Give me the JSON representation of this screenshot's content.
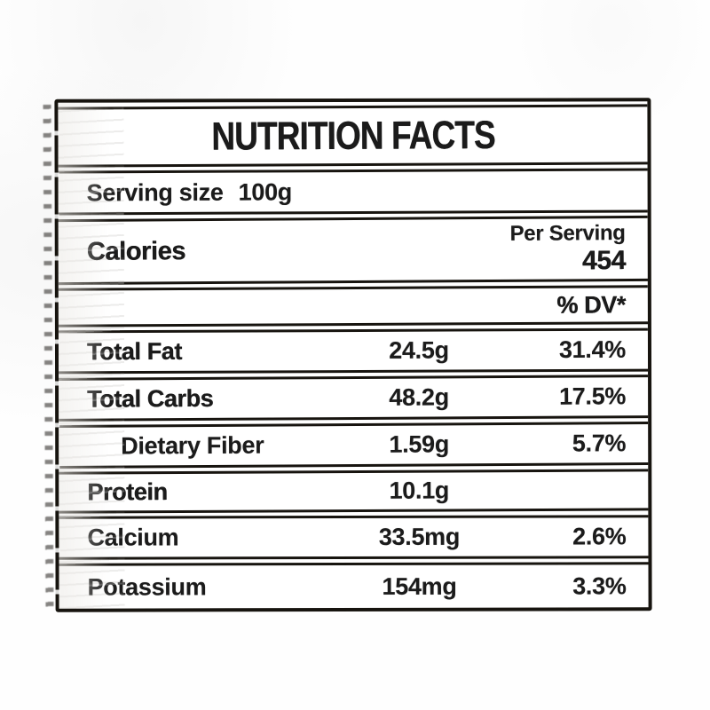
{
  "label": {
    "title": "NUTRITION FACTS",
    "serving": {
      "label": "Serving size",
      "value": "100g"
    },
    "calories": {
      "label": "Calories",
      "per_serving_label": "Per Serving",
      "value": "454"
    },
    "dv_header": "% DV*",
    "rows": [
      {
        "name": "Total Fat",
        "amount": "24.5g",
        "percent": "31.4%",
        "indent": false
      },
      {
        "name": "Total Carbs",
        "amount": "48.2g",
        "percent": "17.5%",
        "indent": false
      },
      {
        "name": "Dietary Fiber",
        "amount": "1.59g",
        "percent": "5.7%",
        "indent": true
      },
      {
        "name": "Protein",
        "amount": "10.1g",
        "percent": "",
        "indent": false
      },
      {
        "name": "Calcium",
        "amount": "33.5mg",
        "percent": "2.6%",
        "indent": false
      },
      {
        "name": "Potassium",
        "amount": "154mg",
        "percent": "3.3%",
        "indent": false
      }
    ],
    "colors": {
      "ink": "#1b1b1b",
      "border": "#17140f",
      "paper": "#ffffff"
    }
  }
}
